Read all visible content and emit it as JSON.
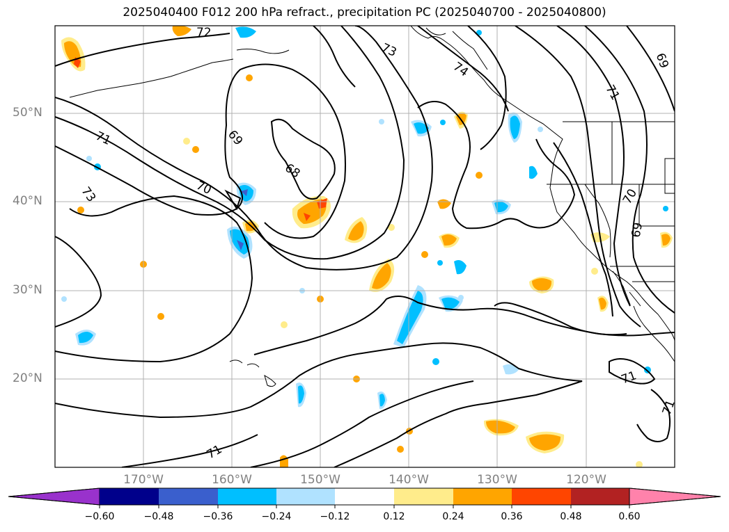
{
  "title": "2025040400 F012 200 hPa refract., precipitation PC (2025040700 - 2025040800)",
  "map": {
    "lat_labels": [
      "50°N",
      "40°N",
      "30°N",
      "20°N"
    ],
    "lon_labels": [
      "170°W",
      "160°W",
      "150°W",
      "140°W",
      "130°W",
      "120°W"
    ],
    "contour_labels": [
      "72",
      "73",
      "74",
      "69",
      "71",
      "69",
      "68",
      "70",
      "71",
      "73",
      "70",
      "69",
      "71",
      "71",
      "71"
    ]
  },
  "colorbar": {
    "ticks": [
      "−0.60",
      "−0.48",
      "−0.36",
      "−0.24",
      "−0.12",
      "0.12",
      "0.24",
      "0.36",
      "0.48",
      "0.60"
    ],
    "colors": [
      "#9932cc",
      "#00008b",
      "#3a5fcd",
      "#00bfff",
      "#b0e2ff",
      "#ffffff",
      "#ffec8b",
      "#ffa500",
      "#ff4500",
      "#b22222",
      "#ff82ab"
    ]
  }
}
